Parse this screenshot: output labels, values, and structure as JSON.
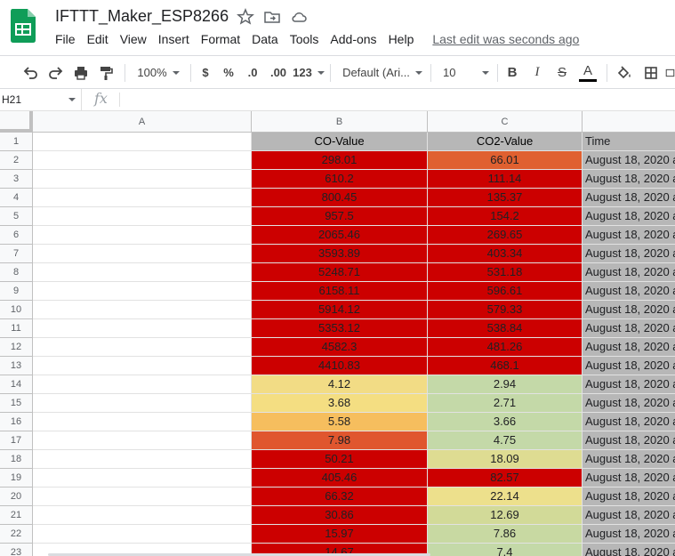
{
  "app": {
    "doc_title": "IFTTT_Maker_ESP8266",
    "menu": [
      "File",
      "Edit",
      "View",
      "Insert",
      "Format",
      "Data",
      "Tools",
      "Add-ons",
      "Help"
    ],
    "last_edit": "Last edit was seconds ago"
  },
  "toolbar": {
    "zoom": "100%",
    "currency": "$",
    "percent": "%",
    "decrease_decimal": ".0",
    "increase_decimal": ".00",
    "more_formats": "123",
    "font": "Default (Ari...",
    "font_size": "10",
    "bold": "B",
    "italic": "I",
    "strike": "S",
    "text_color": "A"
  },
  "formula_bar": {
    "cell_ref": "H21",
    "fx": "fx",
    "value": ""
  },
  "grid": {
    "columns": [
      "A",
      "B",
      "C"
    ],
    "header_row": [
      "",
      "CO-Value",
      "CO2-Value",
      "Time"
    ],
    "rows": [
      {
        "n": "1"
      },
      {
        "n": "2",
        "b": "298.01",
        "bc": "#cc0000",
        "c": "66.01",
        "cc": "#e06030",
        "d": "August 18, 2020 a"
      },
      {
        "n": "3",
        "b": "610.2",
        "bc": "#cc0000",
        "c": "111.14",
        "cc": "#cc0000",
        "d": "August 18, 2020 a"
      },
      {
        "n": "4",
        "b": "800.45",
        "bc": "#cc0000",
        "c": "135.37",
        "cc": "#cc0000",
        "d": "August 18, 2020 a"
      },
      {
        "n": "5",
        "b": "957.5",
        "bc": "#cc0000",
        "c": "154.2",
        "cc": "#cc0000",
        "d": "August 18, 2020 a"
      },
      {
        "n": "6",
        "b": "2065.46",
        "bc": "#cc0000",
        "c": "269.65",
        "cc": "#cc0000",
        "d": "August 18, 2020 a"
      },
      {
        "n": "7",
        "b": "3593.89",
        "bc": "#cc0000",
        "c": "403.34",
        "cc": "#cc0000",
        "d": "August 18, 2020 a"
      },
      {
        "n": "8",
        "b": "5248.71",
        "bc": "#cc0000",
        "c": "531.18",
        "cc": "#cc0000",
        "d": "August 18, 2020 a"
      },
      {
        "n": "9",
        "b": "6158.11",
        "bc": "#cc0000",
        "c": "596.61",
        "cc": "#cc0000",
        "d": "August 18, 2020 a"
      },
      {
        "n": "10",
        "b": "5914.12",
        "bc": "#cc0000",
        "c": "579.33",
        "cc": "#cc0000",
        "d": "August 18, 2020 a"
      },
      {
        "n": "11",
        "b": "5353.12",
        "bc": "#cc0000",
        "c": "538.84",
        "cc": "#cc0000",
        "d": "August 18, 2020 a"
      },
      {
        "n": "12",
        "b": "4582.3",
        "bc": "#cc0000",
        "c": "481.26",
        "cc": "#cc0000",
        "d": "August 18, 2020 a"
      },
      {
        "n": "13",
        "b": "4410.83",
        "bc": "#cc0000",
        "c": "468.1",
        "cc": "#cc0000",
        "d": "August 18, 2020 a"
      },
      {
        "n": "14",
        "b": "4.12",
        "bc": "#f2dc85",
        "c": "2.94",
        "cc": "#c4d9a8",
        "d": "August 18, 2020 a"
      },
      {
        "n": "15",
        "b": "3.68",
        "bc": "#f4de82",
        "c": "2.71",
        "cc": "#c4d9a8",
        "d": "August 18, 2020 a"
      },
      {
        "n": "16",
        "b": "5.58",
        "bc": "#f6be5e",
        "c": "3.66",
        "cc": "#c4d9a8",
        "d": "August 18, 2020 a"
      },
      {
        "n": "17",
        "b": "7.98",
        "bc": "#e0562e",
        "c": "4.75",
        "cc": "#c4d9a8",
        "d": "August 18, 2020 a"
      },
      {
        "n": "18",
        "b": "50.21",
        "bc": "#cc0000",
        "c": "18.09",
        "cc": "#dedc92",
        "d": "August 18, 2020 a"
      },
      {
        "n": "19",
        "b": "405.46",
        "bc": "#cc0000",
        "c": "82.57",
        "cc": "#cc0000",
        "d": "August 18, 2020 a"
      },
      {
        "n": "20",
        "b": "66.32",
        "bc": "#cc0000",
        "c": "22.14",
        "cc": "#ede08c",
        "d": "August 18, 2020 a"
      },
      {
        "n": "21",
        "b": "30.86",
        "bc": "#cc0000",
        "c": "12.69",
        "cc": "#d2da98",
        "d": "August 18, 2020 a"
      },
      {
        "n": "22",
        "b": "15.97",
        "bc": "#cc0000",
        "c": "7.86",
        "cc": "#c8d9a2",
        "d": "August 18, 2020 a"
      },
      {
        "n": "23",
        "b": "14.67",
        "bc": "#cc0000",
        "c": "7.4",
        "cc": "#c4d9a8",
        "d": "August 18, 2020 a"
      }
    ]
  },
  "colors": {
    "header_bg": "#b7b7b7",
    "sheets_green": "#0f9d58"
  }
}
